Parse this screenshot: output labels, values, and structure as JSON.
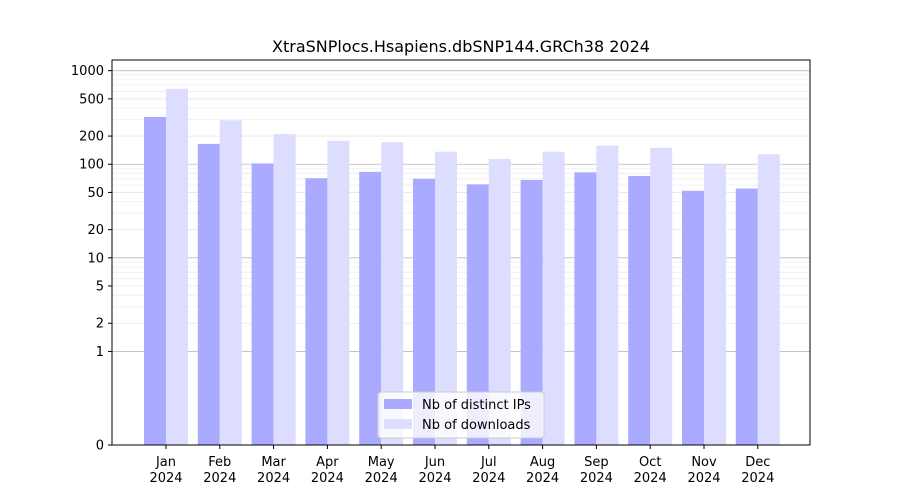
{
  "chart_data": {
    "type": "bar",
    "title": "XtraSNPlocs.Hsapiens.dbSNP144.GRCh38 2024",
    "xlabel": "",
    "ylabel": "",
    "y_scale": "symlog",
    "y_linear_threshold": 1,
    "ylim": [
      0,
      1300
    ],
    "y_ticks": [
      0,
      1,
      2,
      5,
      10,
      20,
      50,
      100,
      200,
      500,
      1000
    ],
    "y_tick_labels": [
      "0",
      "1",
      "2",
      "5",
      "10",
      "20",
      "50",
      "100",
      "200",
      "500",
      "1000"
    ],
    "grid": true,
    "legend_position": "bottom-center",
    "categories": [
      {
        "month": "Jan",
        "year": "2024"
      },
      {
        "month": "Feb",
        "year": "2024"
      },
      {
        "month": "Mar",
        "year": "2024"
      },
      {
        "month": "Apr",
        "year": "2024"
      },
      {
        "month": "May",
        "year": "2024"
      },
      {
        "month": "Jun",
        "year": "2024"
      },
      {
        "month": "Jul",
        "year": "2024"
      },
      {
        "month": "Aug",
        "year": "2024"
      },
      {
        "month": "Sep",
        "year": "2024"
      },
      {
        "month": "Oct",
        "year": "2024"
      },
      {
        "month": "Nov",
        "year": "2024"
      },
      {
        "month": "Dec",
        "year": "2024"
      }
    ],
    "series": [
      {
        "name": "Nb of distinct IPs",
        "color": "#aaaaff",
        "values": [
          320,
          165,
          102,
          71,
          83,
          70,
          61,
          68,
          82,
          75,
          52,
          55
        ]
      },
      {
        "name": "Nb of downloads",
        "color": "#ddddff",
        "values": [
          640,
          295,
          210,
          178,
          172,
          136,
          114,
          136,
          158,
          150,
          100,
          128
        ]
      }
    ]
  }
}
